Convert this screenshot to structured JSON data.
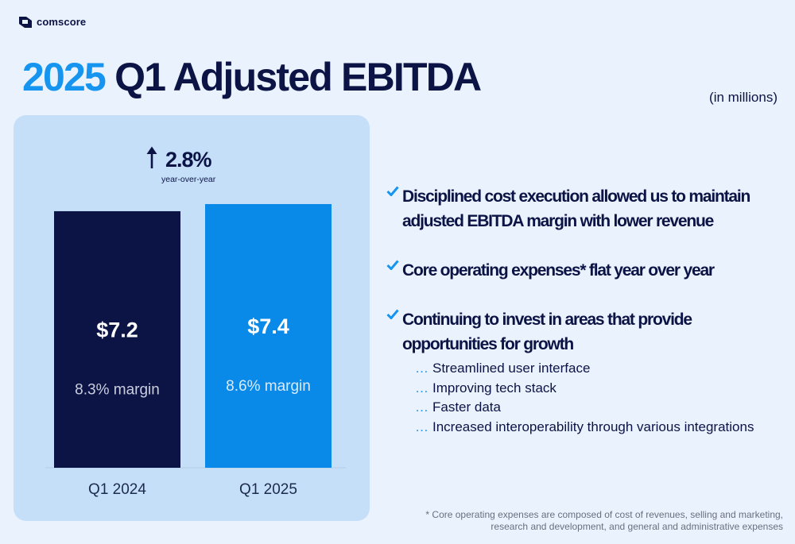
{
  "brand": {
    "name": "comscore"
  },
  "title": {
    "year": "2025",
    "rest": "Q1 Adjusted EBITDA"
  },
  "units": "(in millions)",
  "growth": {
    "value": "2.8%",
    "label": "year-over-year"
  },
  "chart_data": {
    "type": "bar",
    "categories": [
      "Q1 2024",
      "Q1 2025"
    ],
    "values": [
      7.2,
      7.4
    ],
    "value_labels": [
      "$7.2",
      "$7.4"
    ],
    "margin_labels": [
      "8.3% margin",
      "8.6% margin"
    ],
    "colors": [
      "#0c1446",
      "#0a8ae8"
    ],
    "ylim": [
      0,
      7.6
    ]
  },
  "bullets": [
    {
      "text_lines": [
        "Disciplined cost execution allowed us to maintain",
        "adjusted EBITDA margin with lower revenue"
      ]
    },
    {
      "text_lines": [
        "Core operating expenses* flat year over year"
      ]
    },
    {
      "text_lines": [
        "Continuing to invest in areas that provide",
        "opportunities for growth"
      ]
    }
  ],
  "sub_bullets": {
    "prefix": "…",
    "items": [
      "Streamlined user interface",
      "Improving tech stack",
      "Faster data",
      "Increased interoperability through various integrations"
    ]
  },
  "footnote": {
    "lines": [
      "* Core operating expenses are composed of cost of revenues, selling and marketing,",
      "research and development, and general and administrative expenses"
    ]
  },
  "colors": {
    "accent": "#1595ef",
    "navy": "#0c1446",
    "panel": "#c5dff9",
    "background": "#eaf2fd"
  }
}
